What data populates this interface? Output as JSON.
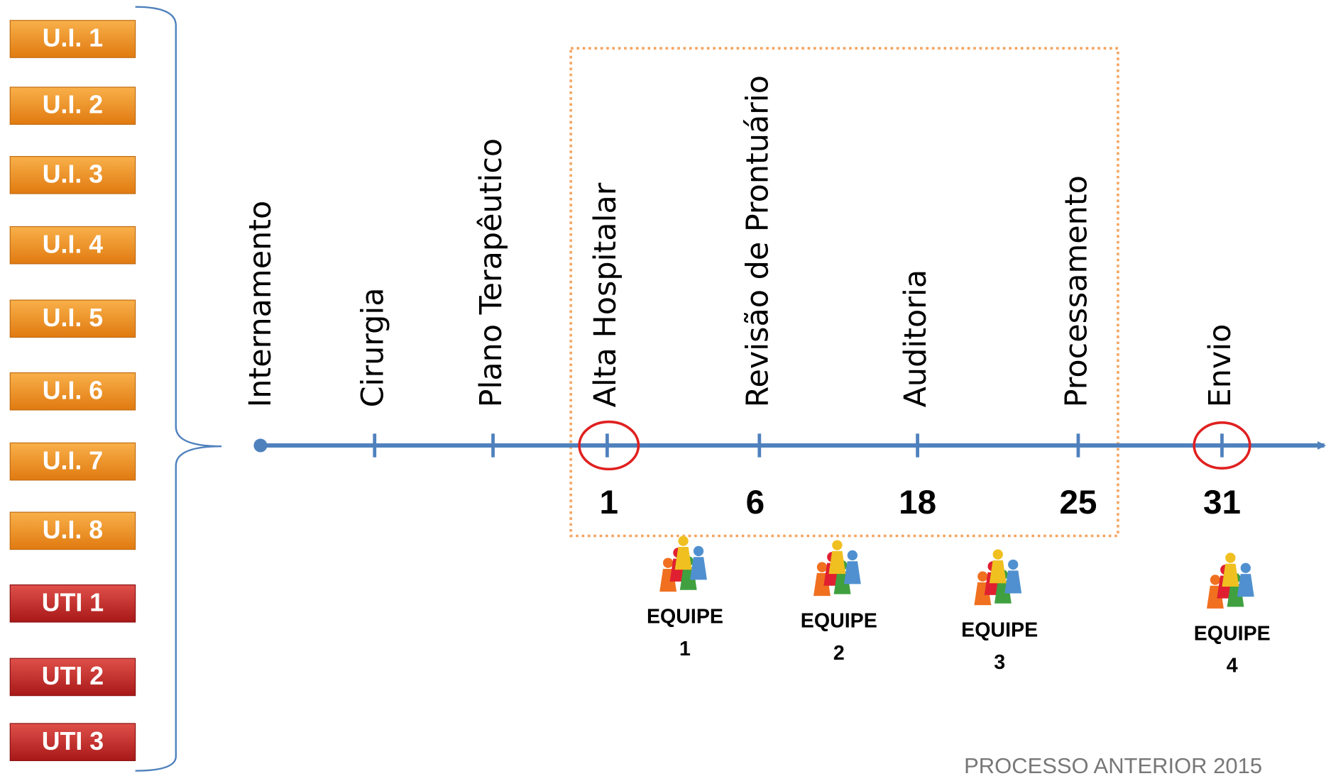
{
  "units": [
    "U.I. 1",
    "U.I. 2",
    "U.I. 3",
    "U.I. 4",
    "U.I. 5",
    "U.I. 6",
    "U.I. 7",
    "U.I. 8",
    "UTI 1",
    "UTI 2",
    "UTI 3"
  ],
  "stages": [
    "Internamento",
    "Cirurgia",
    "Plano Terapêutico",
    "Alta Hospitalar",
    "Revisão de Prontuário",
    "Auditoria",
    "Processamento",
    "Envio"
  ],
  "days": [
    "1",
    "6",
    "18",
    "25",
    "31"
  ],
  "teams": [
    {
      "label": "EQUIPE",
      "number": "1"
    },
    {
      "label": "EQUIPE",
      "number": "2"
    },
    {
      "label": "EQUIPE",
      "number": "3"
    },
    {
      "label": "EQUIPE",
      "number": "4"
    }
  ],
  "footer": "PROCESSO ANTERIOR 2015"
}
